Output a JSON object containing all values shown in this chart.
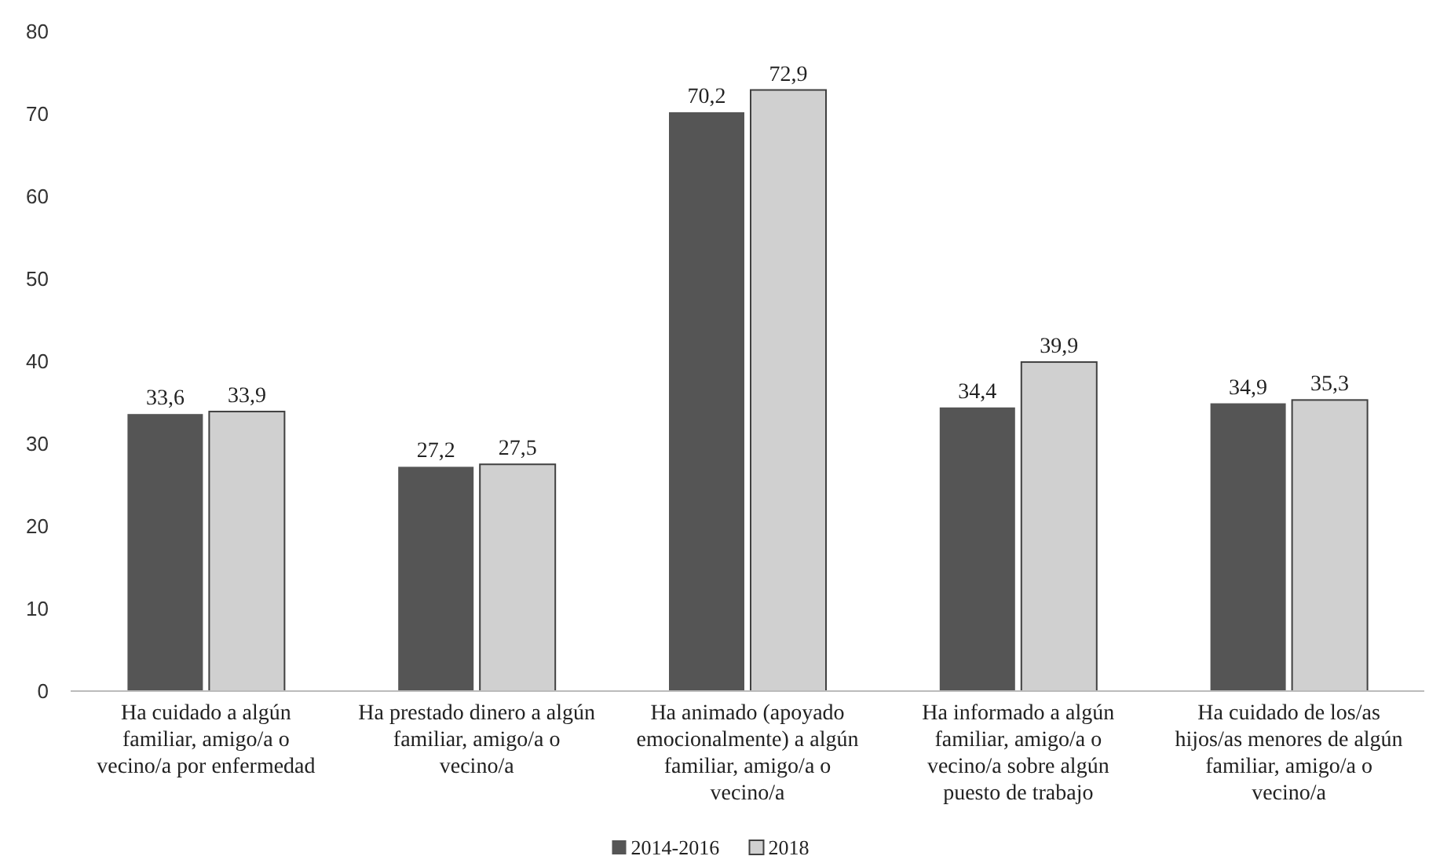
{
  "chart_data": {
    "type": "bar",
    "categories": [
      "Ha cuidado a algún familiar, amigo/a o vecino/a por enfermedad",
      "Ha prestado dinero a algún familiar, amigo/a o vecino/a",
      "Ha animado (apoyado emocionalmente) a algún familiar, amigo/a o vecino/a",
      "Ha informado a algún familiar, amigo/a o vecino/a sobre algún puesto de trabajo",
      "Ha cuidado de los/as hijos/as menores de algún familiar, amigo/a o vecino/a"
    ],
    "series": [
      {
        "name": "2014-2016",
        "color": "#555555",
        "values": [
          33.6,
          27.2,
          70.2,
          34.4,
          34.9
        ],
        "value_labels": [
          "33,6",
          "27,2",
          "70,2",
          "34,4",
          "34,9"
        ]
      },
      {
        "name": "2018",
        "color": "#d0d0d0",
        "values": [
          33.9,
          27.5,
          72.9,
          39.9,
          35.3
        ],
        "value_labels": [
          "33,9",
          "27,5",
          "72,9",
          "39,9",
          "35,3"
        ]
      }
    ],
    "ylim": [
      0,
      80
    ],
    "yticks": [
      0,
      10,
      20,
      30,
      40,
      50,
      60,
      70,
      80
    ],
    "grid": false,
    "legend": "bottom"
  }
}
